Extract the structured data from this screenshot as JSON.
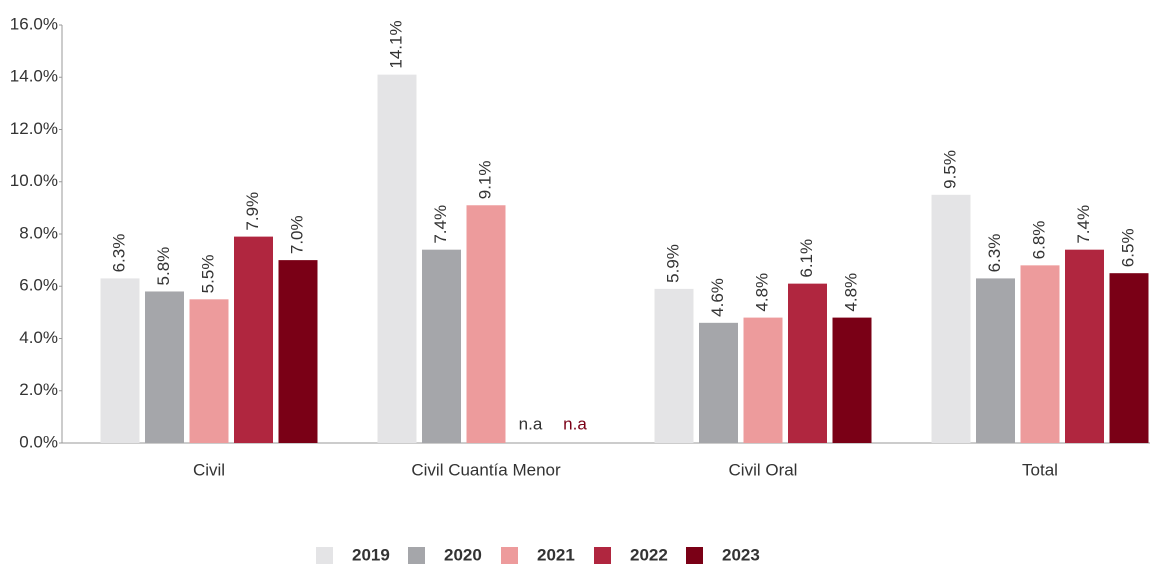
{
  "chart_data": {
    "type": "bar",
    "categories": [
      "Civil",
      "Civil Cuantía Menor",
      "Civil Oral",
      "Total"
    ],
    "series": [
      {
        "name": "2019",
        "color": "#e4e4e6",
        "values": [
          6.3,
          14.1,
          5.9,
          9.5
        ],
        "value_labels": [
          "6.3%",
          "14.1%",
          "5.9%",
          "9.5%"
        ]
      },
      {
        "name": "2020",
        "color": "#a5a6aa",
        "values": [
          5.8,
          7.4,
          4.6,
          6.3
        ],
        "value_labels": [
          "5.8%",
          "7.4%",
          "4.6%",
          "6.3%"
        ]
      },
      {
        "name": "2021",
        "color": "#ed9b9c",
        "values": [
          5.5,
          9.1,
          4.8,
          6.8
        ],
        "value_labels": [
          "5.5%",
          "9.1%",
          "4.8%",
          "6.8%"
        ]
      },
      {
        "name": "2022",
        "color": "#b0263f",
        "values": [
          7.9,
          null,
          6.1,
          7.4
        ],
        "value_labels": [
          "7.9%",
          "n.a",
          "6.1%",
          "7.4%"
        ]
      },
      {
        "name": "2023",
        "color": "#7a0016",
        "values": [
          7.0,
          null,
          4.8,
          6.5
        ],
        "value_labels": [
          "7.0%",
          "n.a",
          "4.8%",
          "6.5%"
        ]
      }
    ],
    "ylim": [
      0,
      16
    ],
    "yticks": [
      {
        "value": 0,
        "label": "0.0%"
      },
      {
        "value": 2,
        "label": "2.0%"
      },
      {
        "value": 4,
        "label": "4.0%"
      },
      {
        "value": 6,
        "label": "6.0%"
      },
      {
        "value": 8,
        "label": "8.0%"
      },
      {
        "value": 10,
        "label": "10.0%"
      },
      {
        "value": 12,
        "label": "12.0%"
      },
      {
        "value": 14,
        "label": "14.0%"
      },
      {
        "value": 16,
        "label": "16.0%"
      }
    ],
    "grid": false,
    "legend": "bottom"
  }
}
